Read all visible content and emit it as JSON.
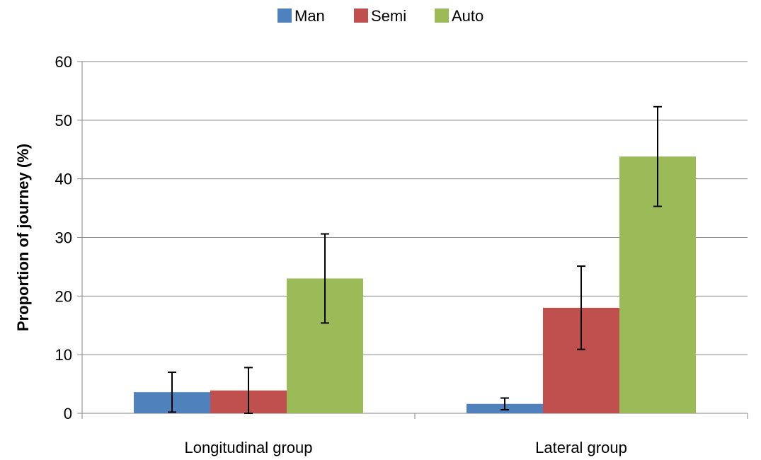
{
  "chart_data": {
    "type": "bar",
    "title": "",
    "xlabel": "",
    "ylabel": "Proportion of journey (%)",
    "ylim": [
      0,
      60
    ],
    "yticks": [
      0,
      10,
      20,
      30,
      40,
      50,
      60
    ],
    "grid": true,
    "legend_position": "top",
    "categories": [
      "Longitudinal group",
      "Lateral group"
    ],
    "series": [
      {
        "name": "Man",
        "color": "#4f81bd",
        "values": [
          3.6,
          1.6
        ],
        "error": [
          3.4,
          1.0
        ]
      },
      {
        "name": "Semi",
        "color": "#c0504d",
        "values": [
          3.9,
          18.0
        ],
        "error": [
          3.9,
          7.1
        ]
      },
      {
        "name": "Auto",
        "color": "#9bbb59",
        "values": [
          23.0,
          43.8
        ],
        "error": [
          7.6,
          8.5
        ]
      }
    ]
  }
}
